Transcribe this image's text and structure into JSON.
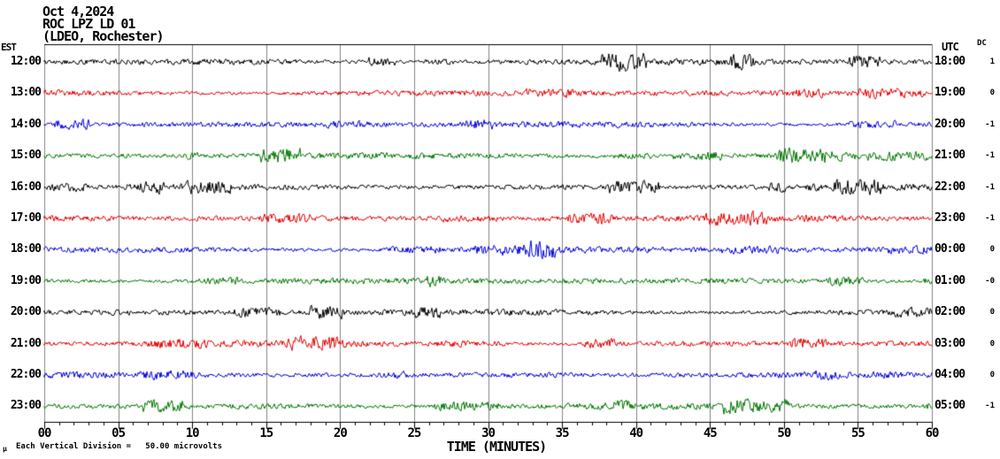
{
  "header": {
    "date": "Oct 4,2024",
    "station": "ROC LPZ LD 01",
    "network": "(LDEO, Rochester)"
  },
  "left_axis_label": "EST",
  "right_axis_label": "UTC",
  "dc_label": "DC",
  "micro_glyph": "µ",
  "scale_note": "Each Vertical Division =   50.00 microvolts",
  "colors": {
    "black": "#000000",
    "red": "#e60000",
    "blue": "#0000dd",
    "green": "#007700",
    "grid": "#858585",
    "frame": "#000000",
    "background": "#ffffff"
  },
  "chart_data": {
    "type": "line",
    "subtype": "helicorder-seismogram",
    "title": "ROC LPZ LD 01 (LDEO, Rochester) Oct 4,2024",
    "xlabel": "TIME (MINUTES)",
    "x_range_minutes": [
      0,
      60
    ],
    "x_major_tick_minutes": 5,
    "x_minor_tick_minutes": 1,
    "x_tick_labels": [
      "00",
      "05",
      "10",
      "15",
      "20",
      "25",
      "30",
      "35",
      "40",
      "45",
      "50",
      "55",
      "60"
    ],
    "vertical_division_microvolts": 50.0,
    "left_timezone": "EST",
    "right_timezone": "UTC",
    "grid": true,
    "rows": [
      {
        "est": "12:00",
        "utc": "18:00",
        "dc": "1",
        "color": "black"
      },
      {
        "est": "13:00",
        "utc": "19:00",
        "dc": "0",
        "color": "red"
      },
      {
        "est": "14:00",
        "utc": "20:00",
        "dc": "-1",
        "color": "blue"
      },
      {
        "est": "15:00",
        "utc": "21:00",
        "dc": "-1",
        "color": "green"
      },
      {
        "est": "16:00",
        "utc": "22:00",
        "dc": "-1",
        "color": "black"
      },
      {
        "est": "17:00",
        "utc": "23:00",
        "dc": "-1",
        "color": "red"
      },
      {
        "est": "18:00",
        "utc": "00:00",
        "dc": "0",
        "color": "blue"
      },
      {
        "est": "19:00",
        "utc": "01:00",
        "dc": "-0",
        "color": "green"
      },
      {
        "est": "20:00",
        "utc": "02:00",
        "dc": "0",
        "color": "black"
      },
      {
        "est": "21:00",
        "utc": "03:00",
        "dc": "0",
        "color": "red"
      },
      {
        "est": "22:00",
        "utc": "04:00",
        "dc": "0",
        "color": "blue"
      },
      {
        "est": "23:00",
        "utc": "05:00",
        "dc": "-1",
        "color": "green"
      }
    ],
    "waveform_description": "Each row is one hour of continuous background seismic noise; peak-to-peak amplitude roughly 0.1-0.3 vertical divisions with intermittent higher-amplitude bursts; no distinct earthquake arrivals visible."
  }
}
